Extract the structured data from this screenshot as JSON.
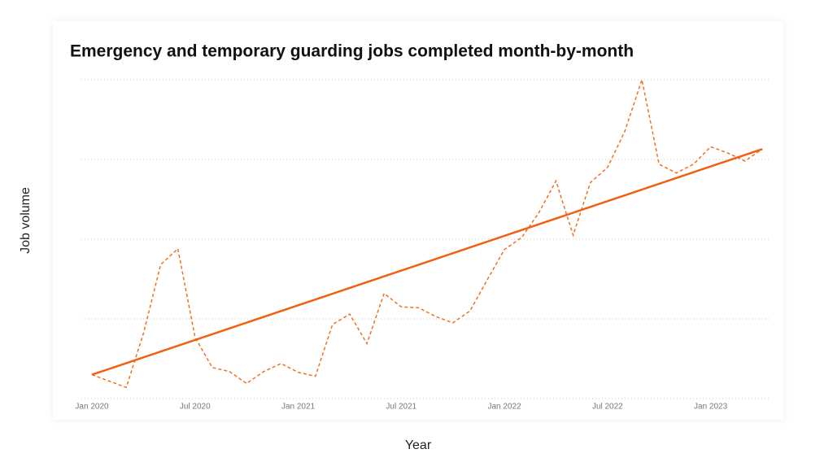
{
  "chart_data": {
    "type": "line",
    "title": "Emergency and temporary guarding jobs completed month-by-month",
    "xlabel": "Year",
    "ylabel": "Job volume",
    "categories": [
      "Jan 2020",
      null,
      null,
      null,
      null,
      null,
      "Jul 2020",
      null,
      null,
      null,
      null,
      null,
      "Jan 2021",
      null,
      null,
      null,
      null,
      null,
      "Jul 2021",
      null,
      null,
      null,
      null,
      null,
      "Jan 2022",
      null,
      null,
      null,
      null,
      null,
      "Jul 2022",
      null,
      null,
      null,
      null,
      null,
      "Jan 2023",
      null,
      null,
      null
    ],
    "series": [
      {
        "color": "#f07020",
        "dashed": true,
        "values": [
          0.3,
          0.22,
          0.14,
          0.82,
          1.68,
          1.88,
          0.77,
          0.39,
          0.34,
          0.19,
          0.34,
          0.44,
          0.33,
          0.28,
          0.93,
          1.06,
          0.69,
          1.32,
          1.15,
          1.14,
          1.03,
          0.95,
          1.1,
          1.49,
          1.87,
          2.02,
          2.33,
          2.73,
          2.05,
          2.71,
          2.9,
          3.35,
          4.0,
          2.94,
          2.83,
          2.94,
          3.16,
          3.08,
          2.98,
          3.13
        ]
      }
    ],
    "trendline": {
      "start": 0.3,
      "end": 3.13,
      "color": "#f06010"
    },
    "ylim": [
      0,
      4
    ],
    "yticks": [
      0,
      1,
      2,
      3,
      4
    ],
    "grid": true
  }
}
